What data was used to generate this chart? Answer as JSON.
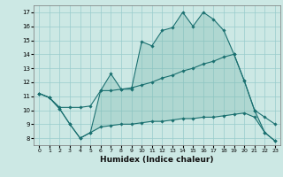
{
  "xlabel": "Humidex (Indice chaleur)",
  "xlim": [
    -0.5,
    23.5
  ],
  "ylim": [
    7.5,
    17.5
  ],
  "yticks": [
    8,
    9,
    10,
    11,
    12,
    13,
    14,
    15,
    16,
    17
  ],
  "xticks": [
    0,
    1,
    2,
    3,
    4,
    5,
    6,
    7,
    8,
    9,
    10,
    11,
    12,
    13,
    14,
    15,
    16,
    17,
    18,
    19,
    20,
    21,
    22,
    23
  ],
  "background_color": "#cce8e4",
  "grid_color": "#99cccc",
  "line_color": "#1a7070",
  "fill_color": "#7ab8b0",
  "series_max": [
    11.2,
    10.9,
    10.1,
    9.0,
    8.0,
    8.4,
    11.4,
    12.6,
    11.5,
    11.5,
    14.9,
    14.6,
    15.7,
    15.9,
    17.0,
    16.0,
    17.0,
    16.5,
    15.7,
    14.0,
    12.1,
    10.0,
    8.4,
    7.8
  ],
  "series_mean": [
    11.2,
    10.9,
    10.2,
    10.2,
    10.2,
    10.3,
    11.4,
    11.4,
    11.5,
    11.6,
    11.8,
    12.0,
    12.3,
    12.5,
    12.8,
    13.0,
    13.3,
    13.5,
    13.8,
    14.0,
    12.1,
    10.0,
    9.5,
    9.0
  ],
  "series_min": [
    11.2,
    10.9,
    10.1,
    9.0,
    8.0,
    8.4,
    8.8,
    8.9,
    9.0,
    9.0,
    9.1,
    9.2,
    9.2,
    9.3,
    9.4,
    9.4,
    9.5,
    9.5,
    9.6,
    9.7,
    9.8,
    9.5,
    8.4,
    7.8
  ]
}
